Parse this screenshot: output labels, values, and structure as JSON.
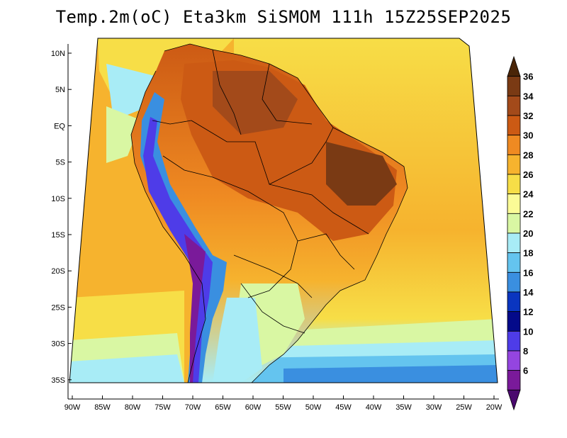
{
  "title": "Temp.2m(oC) Eta3km SiSMOM 111h 15Z25SEP2025",
  "map": {
    "lat_labels": [
      "10N",
      "5N",
      "EQ",
      "5S",
      "10S",
      "15S",
      "20S",
      "25S",
      "30S",
      "35S"
    ],
    "lon_labels": [
      "90W",
      "85W",
      "80W",
      "75W",
      "70W",
      "65W",
      "60W",
      "55W",
      "50W",
      "45W",
      "40W",
      "35W",
      "30W",
      "25W",
      "20W"
    ]
  },
  "colorbar": {
    "labels": [
      "36",
      "34",
      "32",
      "30",
      "28",
      "26",
      "24",
      "22",
      "20",
      "18",
      "16",
      "14",
      "12",
      "10",
      "8",
      "6"
    ],
    "colors": [
      "#4a2508",
      "#7a3a14",
      "#a34a1a",
      "#cc5a14",
      "#ef8a22",
      "#f6b32e",
      "#f7de47",
      "#fbfb96",
      "#d9f7a3",
      "#a8ecf6",
      "#64c4ef",
      "#3a8fe0",
      "#0a35c0",
      "#040a8a",
      "#4e3ce8",
      "#9445e0",
      "#7a1a9a",
      "#4a0a6e"
    ]
  }
}
